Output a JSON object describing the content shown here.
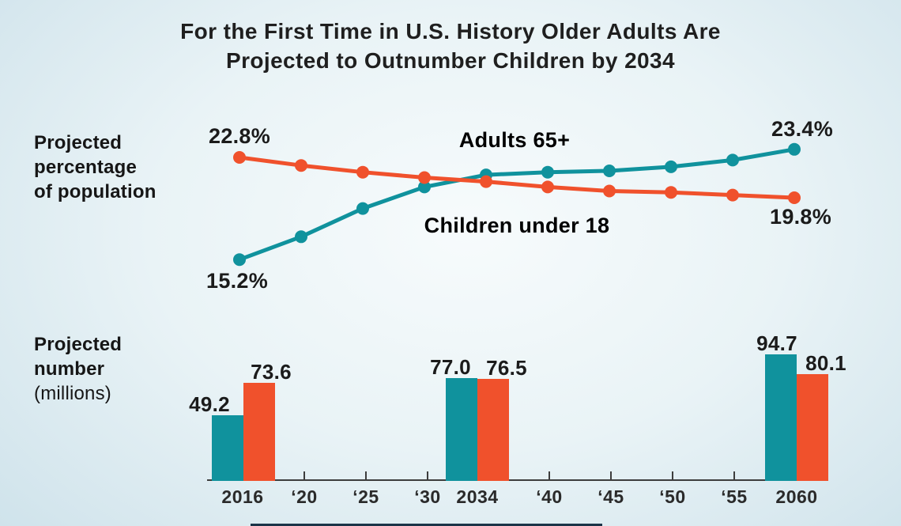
{
  "header": {
    "title_line1": "For the First Time in U.S. History Older Adults Are",
    "title_line2": "Projected to Outnumber Children by 2034"
  },
  "sections": {
    "percentage": {
      "line1": "Projected",
      "line2": "percentage",
      "line3": "of population"
    },
    "number": {
      "line1": "Projected",
      "line2": "number",
      "line3": "(millions)"
    }
  },
  "colors": {
    "teal": "#10929d",
    "orange": "#f0512c",
    "text": "#1f1f1f",
    "axis": "#3d3d3d",
    "footer_strip": "#1b3448"
  },
  "chart_data": [
    {
      "type": "line",
      "title": "Projected percentage of population",
      "x": [
        2016,
        2020,
        2025,
        2030,
        2034,
        2040,
        2045,
        2050,
        2055,
        2060
      ],
      "ylim": [
        14,
        24
      ],
      "grid": false,
      "series": [
        {
          "name": "Adults 65+",
          "color": "#10929d",
          "values": [
            15.2,
            16.9,
            19.0,
            20.6,
            21.5,
            21.7,
            21.8,
            22.1,
            22.6,
            23.4
          ],
          "label_start": "15.2%",
          "label_end": "23.4%"
        },
        {
          "name": "Children under 18",
          "color": "#f0512c",
          "values": [
            22.8,
            22.2,
            21.7,
            21.3,
            21.0,
            20.6,
            20.3,
            20.2,
            20.0,
            19.8
          ],
          "label_start": "22.8%",
          "label_end": "19.8%"
        }
      ]
    },
    {
      "type": "bar",
      "title": "Projected number (millions)",
      "categories": [
        "2016",
        "2034",
        "2060"
      ],
      "x_ticks": [
        "2016",
        "‘20",
        "‘25",
        "‘30",
        "2034",
        "‘40",
        "‘45",
        "‘50",
        "‘55",
        "2060"
      ],
      "series": [
        {
          "name": "Adults 65+",
          "color": "#10929d",
          "values": [
            49.2,
            77.0,
            94.7
          ],
          "value_labels": [
            "49.2",
            "77.0",
            "94.7"
          ]
        },
        {
          "name": "Children under 18",
          "color": "#f0512c",
          "values": [
            73.6,
            76.5,
            80.1
          ],
          "value_labels": [
            "73.6",
            "76.5",
            "80.1"
          ]
        }
      ]
    }
  ]
}
